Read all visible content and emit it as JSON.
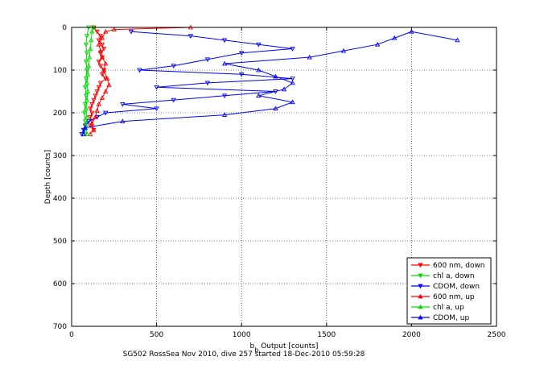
{
  "chart_data": {
    "type": "scatter",
    "xlabel_main": "b",
    "xlabel_sub": "b",
    "xlabel_rest": " Output [counts]",
    "ylabel": "Depth [counts]",
    "caption": "SG502 RossSea Nov 2010, dive 257 started 18-Dec-2010 05:59:28",
    "xlim": [
      0,
      2500
    ],
    "ylim": [
      0,
      700
    ],
    "y_reversed": true,
    "x_ticks": [
      "0",
      "500",
      "1000",
      "1500",
      "2000",
      "2500"
    ],
    "y_ticks": [
      "0",
      "100",
      "200",
      "300",
      "400",
      "500",
      "600",
      "700"
    ],
    "grid": true,
    "legend_position": "bottom-right",
    "series": [
      {
        "name": "600 nm, down",
        "color": "#ff0000",
        "marker": "triangle-down",
        "line": true,
        "points": [
          [
            130,
            0
          ],
          [
            150,
            10
          ],
          [
            170,
            20
          ],
          [
            160,
            30
          ],
          [
            180,
            40
          ],
          [
            190,
            50
          ],
          [
            170,
            60
          ],
          [
            180,
            70
          ],
          [
            160,
            80
          ],
          [
            170,
            90
          ],
          [
            190,
            100
          ],
          [
            180,
            110
          ],
          [
            200,
            120
          ],
          [
            170,
            130
          ],
          [
            160,
            140
          ],
          [
            150,
            150
          ],
          [
            140,
            160
          ],
          [
            130,
            170
          ],
          [
            120,
            180
          ],
          [
            110,
            190
          ],
          [
            120,
            200
          ],
          [
            110,
            210
          ],
          [
            120,
            220
          ],
          [
            110,
            230
          ],
          [
            130,
            240
          ]
        ]
      },
      {
        "name": "chl a, down",
        "color": "#00dd00",
        "marker": "triangle-down",
        "line": true,
        "points": [
          [
            100,
            0
          ],
          [
            90,
            20
          ],
          [
            85,
            40
          ],
          [
            90,
            60
          ],
          [
            85,
            80
          ],
          [
            90,
            100
          ],
          [
            85,
            120
          ],
          [
            80,
            140
          ],
          [
            85,
            160
          ],
          [
            80,
            180
          ],
          [
            75,
            200
          ],
          [
            80,
            220
          ],
          [
            75,
            240
          ],
          [
            80,
            250
          ]
        ]
      },
      {
        "name": "CDOM, down",
        "color": "#0000ff",
        "marker": "triangle-down",
        "line": true,
        "points": [
          [
            350,
            10
          ],
          [
            700,
            20
          ],
          [
            900,
            30
          ],
          [
            1100,
            40
          ],
          [
            1300,
            50
          ],
          [
            1000,
            60
          ],
          [
            800,
            75
          ],
          [
            600,
            90
          ],
          [
            400,
            100
          ],
          [
            1000,
            110
          ],
          [
            1300,
            120
          ],
          [
            800,
            130
          ],
          [
            500,
            140
          ],
          [
            1200,
            150
          ],
          [
            900,
            160
          ],
          [
            600,
            170
          ],
          [
            300,
            180
          ],
          [
            500,
            190
          ],
          [
            200,
            200
          ],
          [
            150,
            210
          ],
          [
            100,
            220
          ],
          [
            80,
            230
          ],
          [
            70,
            240
          ],
          [
            60,
            250
          ]
        ]
      },
      {
        "name": "600 nm, up",
        "color": "#ff0000",
        "marker": "triangle-up",
        "line": true,
        "points": [
          [
            110,
            250
          ],
          [
            130,
            240
          ],
          [
            120,
            225
          ],
          [
            140,
            210
          ],
          [
            150,
            195
          ],
          [
            160,
            180
          ],
          [
            180,
            165
          ],
          [
            200,
            150
          ],
          [
            220,
            135
          ],
          [
            210,
            120
          ],
          [
            190,
            100
          ],
          [
            200,
            85
          ],
          [
            180,
            70
          ],
          [
            170,
            55
          ],
          [
            160,
            40
          ],
          [
            180,
            25
          ],
          [
            200,
            10
          ],
          [
            250,
            5
          ],
          [
            700,
            0
          ]
        ]
      },
      {
        "name": "chl a, up",
        "color": "#00dd00",
        "marker": "triangle-up",
        "line": true,
        "points": [
          [
            90,
            250
          ],
          [
            85,
            230
          ],
          [
            90,
            210
          ],
          [
            85,
            190
          ],
          [
            90,
            170
          ],
          [
            95,
            150
          ],
          [
            90,
            130
          ],
          [
            95,
            110
          ],
          [
            100,
            90
          ],
          [
            105,
            70
          ],
          [
            110,
            50
          ],
          [
            115,
            30
          ],
          [
            120,
            10
          ],
          [
            130,
            0
          ]
        ]
      },
      {
        "name": "CDOM, up",
        "color": "#0000ff",
        "marker": "triangle-up",
        "line": true,
        "points": [
          [
            70,
            250
          ],
          [
            80,
            235
          ],
          [
            300,
            220
          ],
          [
            900,
            205
          ],
          [
            1200,
            190
          ],
          [
            1300,
            175
          ],
          [
            1100,
            160
          ],
          [
            1250,
            145
          ],
          [
            1300,
            130
          ],
          [
            1200,
            115
          ],
          [
            1100,
            100
          ],
          [
            900,
            85
          ],
          [
            1400,
            70
          ],
          [
            1600,
            55
          ],
          [
            1800,
            40
          ],
          [
            1900,
            25
          ],
          [
            2000,
            10
          ],
          [
            2270,
            30
          ]
        ]
      }
    ]
  }
}
